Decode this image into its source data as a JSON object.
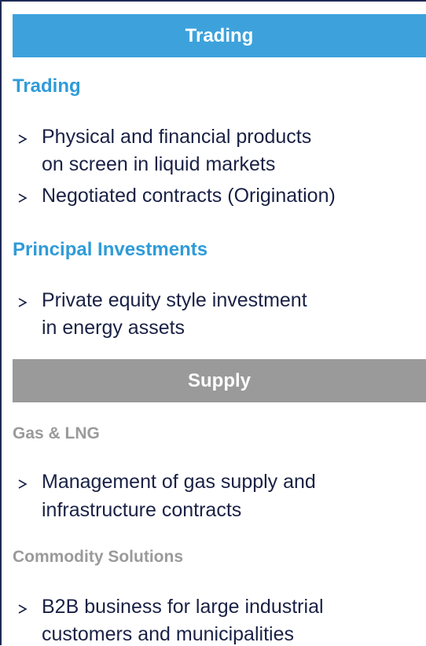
{
  "sections": [
    {
      "header": "Trading",
      "groups": [
        {
          "title": "Trading",
          "bullets": [
            [
              "Physical and financial products",
              "on screen in liquid markets"
            ],
            [
              "Negotiated contracts (Origination)"
            ]
          ]
        },
        {
          "title": "Principal Investments",
          "bullets": [
            [
              "Private equity style investment",
              "in energy assets"
            ]
          ]
        }
      ]
    },
    {
      "header": "Supply",
      "groups": [
        {
          "title": "Gas & LNG",
          "bullets": [
            [
              "Management of gas supply and",
              "infrastructure contracts"
            ]
          ]
        },
        {
          "title": "Commodity Solutions",
          "bullets": [
            [
              "B2B business for large industrial",
              "customers and municipalities"
            ]
          ]
        }
      ]
    }
  ]
}
